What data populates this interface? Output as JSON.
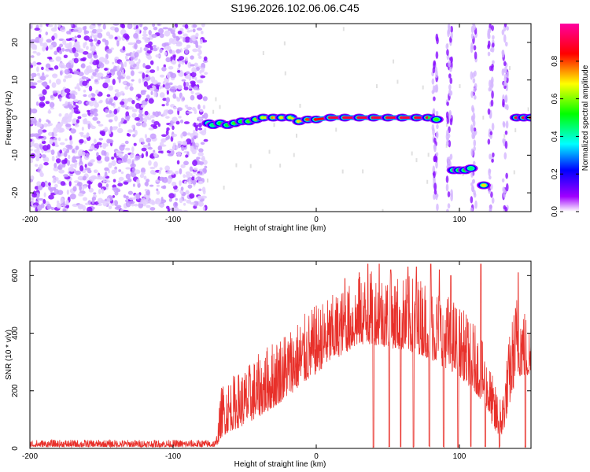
{
  "title": "S196.2026.102.06.06.C45",
  "chart_data": [
    {
      "type": "heatmap",
      "name": "spectrogram",
      "xlabel": "Height of straight line (km)",
      "ylabel": "Frequency (Hz)",
      "xlim": [
        -200,
        150
      ],
      "ylim": [
        -25,
        25
      ],
      "xticks": [
        -200,
        -100,
        0,
        100
      ],
      "yticks": [
        -20,
        -10,
        0,
        10,
        20
      ],
      "colorbar": {
        "label": "Normalized spectral amplitude",
        "range": [
          0,
          1
        ],
        "ticks": [
          "0.0",
          "0.2",
          "0.4",
          "0.6",
          "0.8"
        ],
        "colors": [
          "#ffffff",
          "#a000ff",
          "#0000ff",
          "#00ffff",
          "#00ff00",
          "#ffff00",
          "#ff0000",
          "#ff00a0"
        ]
      },
      "noise_region": {
        "x_range": [
          -200,
          -77
        ],
        "freq_range": [
          -25,
          25
        ],
        "amplitude": 0.1
      },
      "ridge": [
        {
          "x": -75,
          "f": -1.5,
          "a": 0.4
        },
        {
          "x": -72,
          "f": -2.0,
          "a": 0.45
        },
        {
          "x": -67,
          "f": -1.5,
          "a": 0.5
        },
        {
          "x": -62,
          "f": -2.0,
          "a": 0.5
        },
        {
          "x": -57,
          "f": -1.5,
          "a": 0.55
        },
        {
          "x": -52,
          "f": -1.0,
          "a": 0.5
        },
        {
          "x": -47,
          "f": -1.0,
          "a": 0.55
        },
        {
          "x": -42,
          "f": -0.5,
          "a": 0.6
        },
        {
          "x": -37,
          "f": 0.0,
          "a": 0.65
        },
        {
          "x": -30,
          "f": 0.0,
          "a": 0.75
        },
        {
          "x": -24,
          "f": 0.0,
          "a": 0.7
        },
        {
          "x": -18,
          "f": 0.0,
          "a": 0.65
        },
        {
          "x": -12,
          "f": -1.0,
          "a": 0.7
        },
        {
          "x": -6,
          "f": -0.5,
          "a": 0.8
        },
        {
          "x": 0,
          "f": -0.5,
          "a": 0.85
        },
        {
          "x": 10,
          "f": 0.0,
          "a": 0.9
        },
        {
          "x": 20,
          "f": 0.0,
          "a": 0.9
        },
        {
          "x": 30,
          "f": 0.0,
          "a": 0.9
        },
        {
          "x": 40,
          "f": 0.0,
          "a": 0.9
        },
        {
          "x": 50,
          "f": 0.0,
          "a": 0.9
        },
        {
          "x": 60,
          "f": 0.0,
          "a": 0.9
        },
        {
          "x": 70,
          "f": 0.0,
          "a": 0.9
        },
        {
          "x": 78,
          "f": 0.0,
          "a": 0.9
        },
        {
          "x": 84,
          "f": -0.5,
          "a": 0.55
        },
        {
          "x": 96,
          "f": -14.0,
          "a": 0.45
        },
        {
          "x": 100,
          "f": -14.0,
          "a": 0.5
        },
        {
          "x": 104,
          "f": -14.0,
          "a": 0.5
        },
        {
          "x": 108,
          "f": -13.5,
          "a": 0.45
        },
        {
          "x": 117,
          "f": -18.0,
          "a": 0.7
        },
        {
          "x": 140,
          "f": 0.0,
          "a": 0.9
        },
        {
          "x": 145,
          "f": 0.0,
          "a": 0.9
        },
        {
          "x": 150,
          "f": 0.0,
          "a": 0.9
        }
      ],
      "streaks": [
        {
          "x": 83,
          "f_range": [
            -25,
            25
          ]
        },
        {
          "x": 93,
          "f_range": [
            -25,
            25
          ]
        },
        {
          "x": 110,
          "f_range": [
            -25,
            25
          ]
        },
        {
          "x": 122,
          "f_range": [
            -25,
            25
          ]
        },
        {
          "x": 132,
          "f_range": [
            -25,
            25
          ]
        }
      ]
    },
    {
      "type": "line",
      "name": "snr",
      "xlabel": "Height of straight line (km)",
      "ylabel": "SNR (10 * v/v)",
      "xlim": [
        -200,
        150
      ],
      "ylim": [
        0,
        650
      ],
      "xticks": [
        -200,
        -100,
        0,
        100
      ],
      "yticks": [
        0,
        200,
        400,
        600
      ],
      "color": "#e8302a",
      "envelope": [
        {
          "x": -200,
          "low": 5,
          "high": 30
        },
        {
          "x": -70,
          "low": 5,
          "high": 30
        },
        {
          "x": -66,
          "low": 40,
          "high": 230
        },
        {
          "x": -60,
          "low": 60,
          "high": 250
        },
        {
          "x": -50,
          "low": 80,
          "high": 280
        },
        {
          "x": -40,
          "low": 110,
          "high": 330
        },
        {
          "x": -30,
          "low": 140,
          "high": 380
        },
        {
          "x": -20,
          "low": 180,
          "high": 420
        },
        {
          "x": -10,
          "low": 220,
          "high": 460
        },
        {
          "x": 0,
          "low": 260,
          "high": 500
        },
        {
          "x": 10,
          "low": 300,
          "high": 530
        },
        {
          "x": 20,
          "low": 330,
          "high": 560
        },
        {
          "x": 30,
          "low": 360,
          "high": 600
        },
        {
          "x": 40,
          "low": 360,
          "high": 620
        },
        {
          "x": 50,
          "low": 350,
          "high": 610
        },
        {
          "x": 60,
          "low": 340,
          "high": 600
        },
        {
          "x": 70,
          "low": 330,
          "high": 600
        },
        {
          "x": 80,
          "low": 310,
          "high": 590
        },
        {
          "x": 90,
          "low": 280,
          "high": 550
        },
        {
          "x": 100,
          "low": 250,
          "high": 500
        },
        {
          "x": 110,
          "low": 200,
          "high": 440
        },
        {
          "x": 118,
          "low": 150,
          "high": 350
        },
        {
          "x": 125,
          "low": 50,
          "high": 220
        },
        {
          "x": 130,
          "low": 40,
          "high": 200
        },
        {
          "x": 135,
          "low": 150,
          "high": 400
        },
        {
          "x": 140,
          "low": 250,
          "high": 550
        },
        {
          "x": 145,
          "low": 250,
          "high": 500
        },
        {
          "x": 150,
          "low": 240,
          "high": 420
        }
      ],
      "peaks": [
        {
          "x": 20,
          "y": 590
        },
        {
          "x": 30,
          "y": 610
        },
        {
          "x": 36,
          "y": 640
        },
        {
          "x": 44,
          "y": 640
        },
        {
          "x": 52,
          "y": 620
        },
        {
          "x": 64,
          "y": 630
        },
        {
          "x": 70,
          "y": 630
        },
        {
          "x": 80,
          "y": 640
        },
        {
          "x": 86,
          "y": 620
        },
        {
          "x": 94,
          "y": 600
        },
        {
          "x": 115,
          "y": 640
        },
        {
          "x": 141,
          "y": 610
        }
      ],
      "dropouts": [
        40,
        51,
        59,
        68,
        79,
        89,
        99,
        108,
        118,
        128,
        146
      ]
    }
  ]
}
